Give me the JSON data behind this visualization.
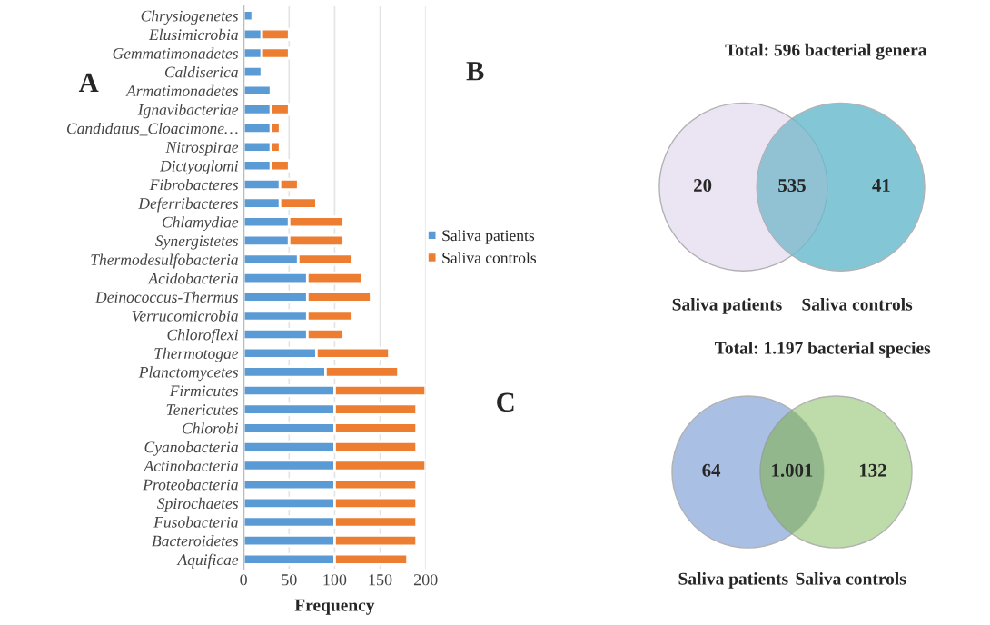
{
  "chart_data": [
    {
      "type": "bar",
      "orientation": "horizontal",
      "stacked": true,
      "xlabel": "Frequency",
      "categories": [
        "Chrysiogenetes",
        "Elusimicrobia",
        "Gemmatimonadetes",
        "Caldiserica",
        "Armatimonadetes",
        "Ignavibacteriae",
        "Candidatus_Cloacimone…",
        "Nitrospirae",
        "Dictyoglomi",
        "Fibrobacteres",
        "Deferribacteres",
        "Chlamydiae",
        "Synergistetes",
        "Thermodesulfobacteria",
        "Acidobacteria",
        "Deinococcus-Thermus",
        "Verrucomicrobia",
        "Chloroflexi",
        "Thermotogae",
        "Planctomycetes",
        "Firmicutes",
        "Tenericutes",
        "Chlorobi",
        "Cyanobacteria",
        "Actinobacteria",
        "Proteobacteria",
        "Spirochaetes",
        "Fusobacteria",
        "Bacteroidetes",
        "Aquificae"
      ],
      "series": [
        {
          "name": "Saliva patients",
          "color": "#5b9bd5",
          "values": [
            10,
            20,
            20,
            20,
            30,
            30,
            30,
            30,
            30,
            40,
            40,
            50,
            50,
            60,
            70,
            70,
            70,
            70,
            80,
            90,
            100,
            100,
            100,
            100,
            100,
            100,
            100,
            100,
            100,
            100
          ]
        },
        {
          "name": "Saliva controls",
          "color": "#ed7d31",
          "values": [
            null,
            30,
            30,
            null,
            null,
            20,
            10,
            10,
            20,
            20,
            40,
            60,
            60,
            60,
            60,
            70,
            50,
            40,
            80,
            80,
            100,
            90,
            90,
            90,
            100,
            90,
            90,
            90,
            90,
            80
          ]
        }
      ],
      "xlim": [
        0,
        200
      ],
      "xticks": [
        0,
        50,
        100,
        150,
        200
      ],
      "grid": "x",
      "legend": "right",
      "annotations": [
        "A"
      ]
    },
    {
      "type": "other",
      "title": "Total: 596 bacterial genera",
      "categories": [
        "Saliva patients",
        null,
        "Saliva controls"
      ],
      "values": [
        20,
        535,
        41
      ],
      "data_labels": true,
      "colors": [
        "#e4dcef",
        "#9fc3d6",
        "#5ab4c8"
      ],
      "annotations": [
        "B"
      ]
    },
    {
      "type": "other",
      "title": "Total: 1.197 bacterial species",
      "categories": [
        "Saliva patients",
        null,
        "Saliva controls"
      ],
      "values": [
        64,
        1001,
        132
      ],
      "value_labels": [
        "64",
        "1.001",
        "132"
      ],
      "colors": [
        "#8eaadb",
        "#86a97e",
        "#a9d18e"
      ],
      "annotations": [
        "C"
      ]
    }
  ]
}
